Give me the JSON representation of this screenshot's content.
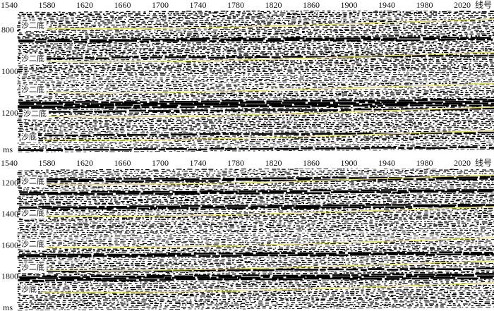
{
  "panels": [
    {
      "xticks": [
        1540,
        1580,
        1620,
        1660,
        1700,
        1740,
        1780,
        1820,
        1860,
        1900,
        1940,
        1980,
        2020
      ],
      "x_unit": "线号",
      "yticks": [
        800,
        1000,
        1200
      ],
      "y_unit": "ms",
      "horizons": [
        "沙二底",
        "沙二底",
        "沙二底",
        "沙二底",
        "沙底"
      ]
    },
    {
      "xticks": [
        1540,
        1580,
        1620,
        1660,
        1700,
        1740,
        1780,
        1820,
        1860,
        1900,
        1940,
        1980,
        2020
      ],
      "x_unit": "线号",
      "yticks": [
        1200,
        1400,
        1600,
        1800
      ],
      "y_unit": "ms",
      "horizons": [
        "沙二底",
        "沙二底",
        "沙二底",
        "沙二底",
        "沙底"
      ]
    }
  ]
}
